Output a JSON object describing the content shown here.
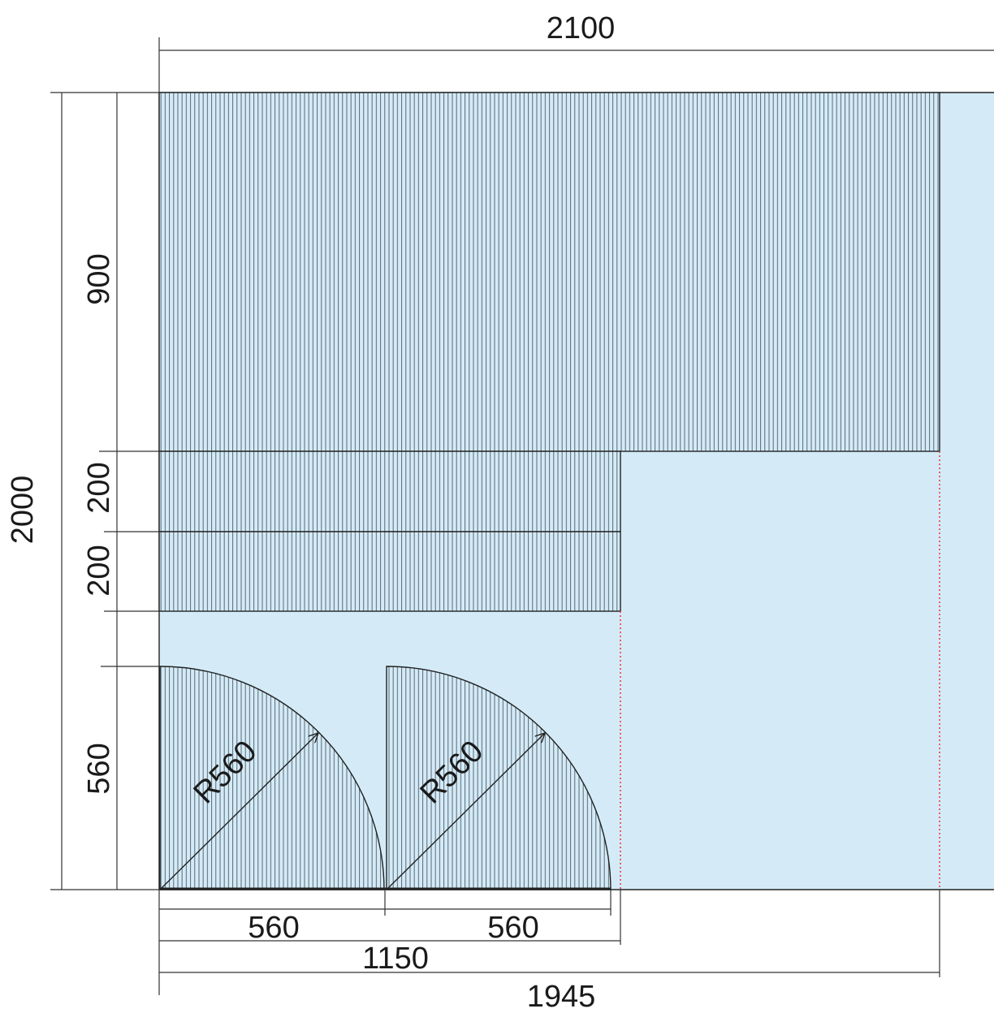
{
  "drawing": {
    "colors": {
      "sheet_fill": "#d4ebf7",
      "hatch_line": "#4a5a66",
      "outline": "#222222",
      "dimension_line": "#333333",
      "cut_line": "#e8413c"
    },
    "dimensions": {
      "total_width": "2100",
      "total_height": "2000",
      "top_panel_height": "900",
      "strip_1_height": "200",
      "strip_2_height": "200",
      "quarter_circle_height": "560",
      "quarter_circle_1_width": "560",
      "quarter_circle_2_width": "560",
      "strips_width": "1150",
      "top_panel_width": "1945"
    },
    "radius_labels": {
      "quarter_circle_1": "R560",
      "quarter_circle_2": "R560"
    }
  }
}
